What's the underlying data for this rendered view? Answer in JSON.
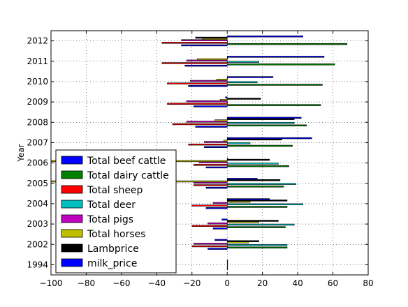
{
  "chart_data": {
    "type": "bar",
    "orientation": "horizontal",
    "ylabel": "Year",
    "categories": [
      "1994",
      "2002",
      "2003",
      "2004",
      "2005",
      "2006",
      "2007",
      "2008",
      "2009",
      "2010",
      "2011",
      "2012"
    ],
    "xlim": [
      -100,
      80
    ],
    "xticks": [
      -100,
      -80,
      -60,
      -40,
      -20,
      0,
      20,
      40,
      60,
      80
    ],
    "xtick_labels": [
      "−100",
      "−80",
      "−60",
      "−40",
      "−20",
      "0",
      "20",
      "40",
      "60",
      "80"
    ],
    "grid": true,
    "legend_position": "center-left",
    "series": [
      {
        "name": "Total beef cattle",
        "color": "#0000ff",
        "values": [
          0,
          -11,
          -8,
          -12,
          -12,
          -12,
          -13,
          -18,
          -19,
          -22,
          -24,
          -26
        ]
      },
      {
        "name": "Total dairy cattle",
        "color": "#008000",
        "values": [
          0,
          34,
          33,
          34,
          32,
          35,
          37,
          45,
          53,
          54,
          61,
          68
        ]
      },
      {
        "name": "Total sheep",
        "color": "#ff0000",
        "values": [
          0,
          -20,
          -20,
          -20,
          -19,
          -19,
          -22,
          -31,
          -34,
          -34,
          -37,
          -37
        ]
      },
      {
        "name": "Total deer",
        "color": "#00bfbf",
        "values": [
          0,
          34,
          38,
          43,
          39,
          29,
          13,
          38,
          0,
          17,
          18,
          0
        ]
      },
      {
        "name": "Total pigs",
        "color": "#bf00bf",
        "values": [
          0,
          -19,
          -11,
          -8,
          -19,
          -16,
          -13,
          -23,
          -23,
          -21,
          -23,
          -26
        ]
      },
      {
        "name": "Total horses",
        "color": "#bfbf00",
        "values": [
          0,
          12,
          18,
          13,
          -100,
          -100,
          -2,
          -7,
          -4,
          -6,
          -17,
          -14
        ]
      },
      {
        "name": "Lambprice",
        "color": "#000000",
        "values": [
          0,
          18,
          29,
          34,
          30,
          24,
          31,
          38,
          19,
          0,
          0,
          -18
        ]
      },
      {
        "name": "milk_price",
        "color": "#0000ff",
        "values": [
          0,
          -7,
          -3,
          24,
          17,
          0,
          48,
          42,
          -1,
          26,
          55,
          43
        ]
      }
    ]
  }
}
